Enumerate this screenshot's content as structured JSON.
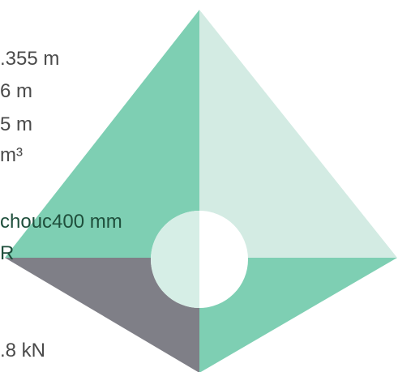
{
  "logo": {
    "icon_name": "pyramid-logo-icon",
    "colors": {
      "left_face": "#7ecfb3",
      "right_face": "#d3ebe3",
      "bottom_left": "#7f7f87",
      "bottom_right": "#7ecfb3",
      "center_circle": "#ffffff",
      "circle_left_half": "#d6eee6"
    }
  },
  "texts": {
    "line1": ".355 m",
    "line2": "6 m",
    "line3": "5 m",
    "line4": "m³",
    "line5": "chouc400 mm",
    "line6": "R",
    "line7": ".8 kN"
  }
}
